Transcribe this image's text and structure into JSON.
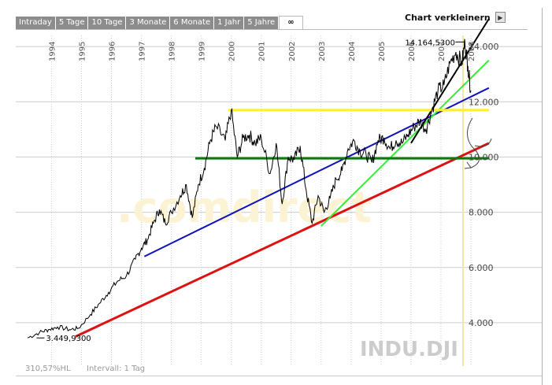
{
  "tabs": [
    {
      "label": "Intraday"
    },
    {
      "label": "5 Tage"
    },
    {
      "label": "10 Tage"
    },
    {
      "label": "3 Monate"
    },
    {
      "label": "6 Monate"
    },
    {
      "label": "1 Jahr"
    },
    {
      "label": "5 Jahre"
    },
    {
      "label": "∞"
    }
  ],
  "header": {
    "shrink_label": "Chart verkleinern",
    "shrink_icon": "triangle-right-icon"
  },
  "footer": {
    "left_text": "310,57%HL",
    "interval_text": "Intervall: 1 Tag"
  },
  "watermark": "INDU.DJI",
  "logo_text": ".comdirect",
  "colors": {
    "price": "#000000",
    "red": "#dd1111",
    "blue": "#1111bb",
    "green_light": "#33ee33",
    "green_dark": "#117711",
    "yellow": "#ffee33",
    "black_trend": "#000000",
    "gridline": "#cccccc"
  },
  "chart_data": {
    "type": "line",
    "title": "",
    "xlabel": "",
    "ylabel": "",
    "x_ticks": [
      "1994",
      "1995",
      "1996",
      "1997",
      "1998",
      "1999",
      "2000",
      "2001",
      "2002",
      "2003",
      "2004",
      "2005",
      "2006",
      "2007",
      "2008"
    ],
    "y_ticks": [
      "4.000",
      "6.000",
      "8.000",
      "10.000",
      "12.000",
      "14.000"
    ],
    "ylim": [
      3000,
      15000
    ],
    "xlim": [
      1993.2,
      2008.0
    ],
    "annotations": [
      {
        "text": "3.449,9300",
        "x": 1993.5,
        "y": 3449.93
      },
      {
        "text": "14.164,5300",
        "x": 2007.8,
        "y": 14164.53
      }
    ],
    "series": [
      {
        "values": [
          [
            1993.2,
            3450
          ],
          [
            1993.6,
            3650
          ],
          [
            1993.9,
            3750
          ],
          [
            1994.2,
            3850
          ],
          [
            1994.6,
            3750
          ],
          [
            1994.9,
            3800
          ],
          [
            1995.3,
            4300
          ],
          [
            1995.6,
            4700
          ],
          [
            1995.9,
            5100
          ],
          [
            1996.2,
            5500
          ],
          [
            1996.5,
            5700
          ],
          [
            1996.8,
            6300
          ],
          [
            1997.0,
            6700
          ],
          [
            1997.2,
            7000
          ],
          [
            1997.4,
            7600
          ],
          [
            1997.6,
            8100
          ],
          [
            1997.8,
            7600
          ],
          [
            1998.0,
            8000
          ],
          [
            1998.3,
            8600
          ],
          [
            1998.5,
            9000
          ],
          [
            1998.7,
            7800
          ],
          [
            1998.9,
            9000
          ],
          [
            1999.1,
            9600
          ],
          [
            1999.3,
            10600
          ],
          [
            1999.5,
            11100
          ],
          [
            1999.8,
            10600
          ],
          [
            2000.0,
            11700
          ],
          [
            2000.2,
            10000
          ],
          [
            2000.4,
            10700
          ],
          [
            2000.6,
            10800
          ],
          [
            2000.8,
            10500
          ],
          [
            2001.0,
            10700
          ],
          [
            2001.3,
            9400
          ],
          [
            2001.5,
            10500
          ],
          [
            2001.7,
            8300
          ],
          [
            2001.9,
            10000
          ],
          [
            2002.1,
            9900
          ],
          [
            2002.3,
            10400
          ],
          [
            2002.5,
            8800
          ],
          [
            2002.7,
            7600
          ],
          [
            2002.9,
            8600
          ],
          [
            2003.1,
            8000
          ],
          [
            2003.3,
            8500
          ],
          [
            2003.5,
            9200
          ],
          [
            2003.7,
            9500
          ],
          [
            2003.9,
            10300
          ],
          [
            2004.1,
            10600
          ],
          [
            2004.3,
            10200
          ],
          [
            2004.5,
            10100
          ],
          [
            2004.7,
            9800
          ],
          [
            2004.9,
            10600
          ],
          [
            2005.1,
            10700
          ],
          [
            2005.3,
            10300
          ],
          [
            2005.5,
            10600
          ],
          [
            2005.7,
            10500
          ],
          [
            2005.9,
            10800
          ],
          [
            2006.1,
            11100
          ],
          [
            2006.3,
            11300
          ],
          [
            2006.5,
            11000
          ],
          [
            2006.7,
            11700
          ],
          [
            2006.9,
            12400
          ],
          [
            2007.1,
            12600
          ],
          [
            2007.3,
            13400
          ],
          [
            2007.5,
            13800
          ],
          [
            2007.7,
            13400
          ],
          [
            2007.8,
            14164
          ],
          [
            2007.9,
            13300
          ],
          [
            2008.0,
            12400
          ]
        ]
      }
    ],
    "trend_lines": [
      {
        "color": "red",
        "points": [
          [
            1994.8,
            3500
          ],
          [
            2008.6,
            10500
          ]
        ]
      },
      {
        "color": "blue",
        "points": [
          [
            1997.1,
            6400
          ],
          [
            2008.6,
            12500
          ]
        ]
      },
      {
        "color": "green_light",
        "points": [
          [
            2003.0,
            7500
          ],
          [
            2008.6,
            13500
          ]
        ]
      },
      {
        "color": "black_trend",
        "points": [
          [
            2006.0,
            10500
          ],
          [
            2008.6,
            15000
          ]
        ]
      },
      {
        "color": "yellow",
        "points": [
          [
            1999.9,
            11700
          ],
          [
            2008.6,
            11700
          ]
        ]
      },
      {
        "color": "green_dark",
        "points": [
          [
            1998.8,
            9950
          ],
          [
            2008.6,
            9950
          ]
        ]
      }
    ]
  }
}
